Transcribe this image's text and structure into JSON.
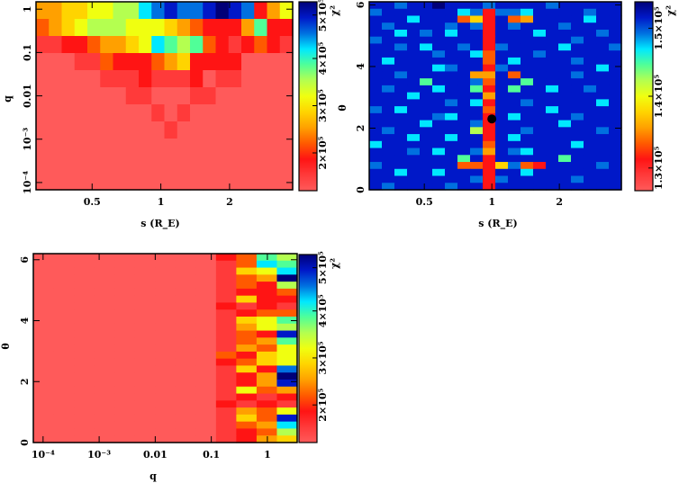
{
  "chart_data": {
    "type": "heatmap",
    "colormap": [
      "#ff5a5a",
      "#ff3a3a",
      "#ff1414",
      "#ff5a00",
      "#ffa000",
      "#ffd400",
      "#f0ff10",
      "#b4ff50",
      "#50ff98",
      "#00e8ff",
      "#0070e0",
      "#0018c8",
      "#000078"
    ],
    "panels": [
      {
        "id": "s-q",
        "xlabel": "s (R_E)",
        "ylabel": "q",
        "xscale": "log",
        "yscale": "log",
        "xlim": [
          0.284,
          3.78
        ],
        "ylim": [
          6.8e-05,
          1.48
        ],
        "xticks": [
          {
            "v": 0.5,
            "label": "0.5"
          },
          {
            "v": 1,
            "label": "1"
          },
          {
            "v": 2,
            "label": "2"
          }
        ],
        "yticks": [
          {
            "v": 1,
            "label": "1"
          },
          {
            "v": 0.1,
            "label": "0.1"
          },
          {
            "v": 0.01,
            "label": "0.01"
          },
          {
            "v": 0.001,
            "label": "10⁻³"
          },
          {
            "v": 0.0001,
            "label": "10⁻⁴"
          }
        ],
        "colorbar": {
          "label": "χ²",
          "ticks": [
            {
              "f": 0.2,
              "label": "2×10⁵"
            },
            {
              "f": 0.45,
              "label": "3×10⁵"
            },
            {
              "f": 0.7,
              "label": "4×10⁵"
            },
            {
              "f": 0.93,
              "label": "5×10⁵"
            }
          ]
        },
        "matrix": [
          "445566779ABAABCBA246",
          "34567776665432224822",
          "11223445698783212321",
          "00011322234522220000",
          "00000111211120110000",
          "00000001100011000000",
          "00000000010100000000",
          "00000000001000000000",
          "00000000000000000000",
          "00000000000000000000",
          "00000000000000000000"
        ]
      },
      {
        "id": "s-theta",
        "xlabel": "s (R_E)",
        "ylabel": "θ",
        "xscale": "log",
        "yscale": "linear",
        "xlim": [
          0.284,
          3.78
        ],
        "ylim": [
          0,
          6.1
        ],
        "xticks": [
          {
            "v": 0.5,
            "label": "0.5"
          },
          {
            "v": 1,
            "label": "1"
          },
          {
            "v": 2,
            "label": "2"
          }
        ],
        "yticks": [
          {
            "v": 0,
            "label": "0"
          },
          {
            "v": 2,
            "label": "2"
          },
          {
            "v": 4,
            "label": "4"
          },
          {
            "v": 6,
            "label": "6"
          }
        ],
        "colorbar": {
          "label": "χ²",
          "ticks": [
            {
              "f": 0.12,
              "label": "1.3×10⁵"
            },
            {
              "f": 0.5,
              "label": "1.4×10⁵"
            },
            {
              "f": 0.86,
              "label": "1.5×10⁵"
            }
          ]
        },
        "best_fit": {
          "s": 1.0,
          "theta": 2.3
        },
        "matrix": [
          "BBABBCBBBABBBBABBBBB",
          "ABBBBBB9A2AA9BBBBABB",
          "BBB9BBB352B34BBBB9BB",
          "BABBBBABA2BABBBABBBB",
          "BB9BAB9BB2BBB9BBBBAB",
          "ABBBBBBBB2BBBBBBABBB",
          "BBAB9BBAB2ABBBB9BBBA",
          "BBBBBABB93BBBABBBBBB",
          "B9BBBBBBB3B9BBBBABBB",
          "BBBBB9ABB2ABBBBBBB9B",
          "BBABBBBB44B3BBBBABBB",
          "BBBB8BBBA3BB8BBBBBBB",
          "BABBB9BB82B8BB9BBABB",
          "BBB9BBBBB4BBBBBBBBBB",
          "BBBBBBAB92BBABBBBB9B",
          "AB9BBBBBB3BBBB9BBBBB",
          "BBBBBA9BB2B9BBBBABBB",
          "BBBB9BBBA2BBBBB9BBBB",
          "BABBBBBB72BBABBBBBAB",
          "BBB9BB9BB2B9BBBBBBBB",
          "9BBBBBBBB3BBBBBB9BBB",
          "BBBAB9BBA4BA9BBBBBBB",
          "BBBBBBB8B2BBBBB8BBBB",
          "ABBBBBB3325A32BBBBAB",
          "BB9BB9BBB2BB9BBBBBBB",
          "BBBBBBBBA2ABBBBBABBB",
          "BABBBBABB2BBBBBBBBBB"
        ]
      },
      {
        "id": "q-theta",
        "xlabel": "q",
        "ylabel": "θ",
        "xscale": "log",
        "yscale": "linear",
        "xlim": [
          6.7e-05,
          3.4
        ],
        "ylim": [
          0,
          6.2
        ],
        "xticks": [
          {
            "v": 0.0001,
            "label": "10⁻⁴"
          },
          {
            "v": 0.001,
            "label": "10⁻³"
          },
          {
            "v": 0.01,
            "label": "0.01"
          },
          {
            "v": 0.1,
            "label": "0.1"
          },
          {
            "v": 1,
            "label": "1"
          }
        ],
        "yticks": [
          {
            "v": 0,
            "label": "0"
          },
          {
            "v": 2,
            "label": "2"
          },
          {
            "v": 4,
            "label": "4"
          },
          {
            "v": 6,
            "label": "6"
          }
        ],
        "colorbar": {
          "label": "χ²",
          "ticks": [
            {
              "f": 0.2,
              "label": "2×10⁵"
            },
            {
              "f": 0.45,
              "label": "3×10⁵"
            },
            {
              "f": 0.7,
              "label": "4×10⁵"
            },
            {
              "f": 0.93,
              "label": "5×10⁵"
            }
          ]
        },
        "matrix": [
          "0000000002387",
          "0000000001398",
          "0000000001569",
          "000000000134C",
          "0000000001327",
          "0000000001223",
          "0000000001522",
          "0000000002121",
          "0000000001233",
          "0000000001568",
          "0000000001467",
          "000000000132B",
          "0000000001348",
          "0000000001436",
          "0000000003256",
          "0000000002356",
          "000000000152A",
          "000000000124C",
          "000000000124B",
          "0000000001634",
          "0000000001212",
          "0000000002121",
          "0000000001436",
          "000000000153B",
          "0000000001349",
          "0000000001237",
          "0000000001245"
        ]
      }
    ]
  }
}
